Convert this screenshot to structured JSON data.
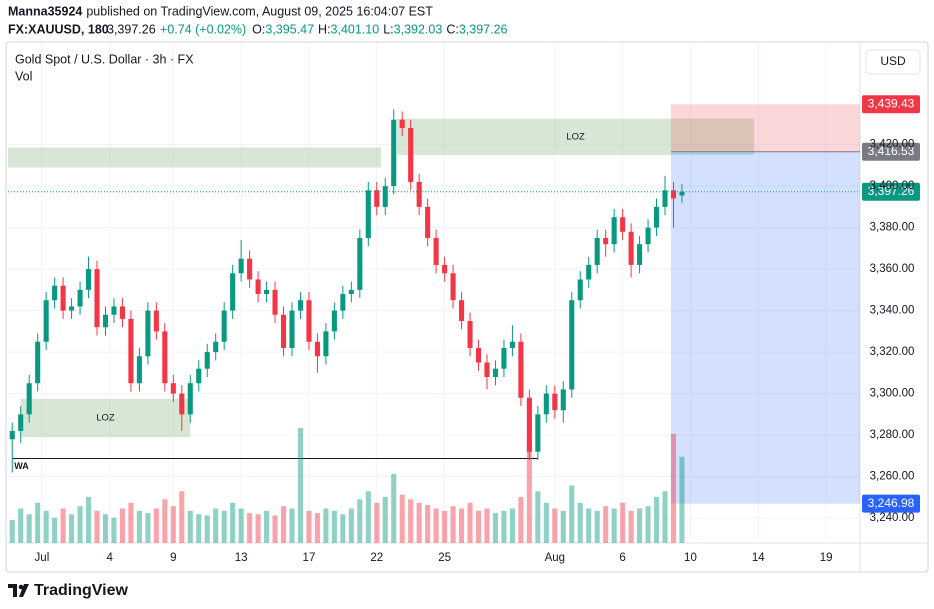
{
  "header": {
    "author": "Manna35924",
    "published": "published on TradingView.com, August 09, 2025 16:04:07 EST",
    "symbol": "FX:XAUUSD, 180",
    "last": "3,397.26",
    "change": "+0.74 (+0.02%)",
    "ohlc": [
      {
        "key": "O:",
        "value": "3,395.47"
      },
      {
        "key": "H:",
        "value": "3,401.10"
      },
      {
        "key": "L:",
        "value": "3,392.03"
      },
      {
        "key": "C:",
        "value": "3,397.26"
      }
    ]
  },
  "chart_data": {
    "type": "candlestick",
    "title": "Gold Spot / U.S. Dollar · 3h · FX",
    "currency": "USD",
    "up_color": "#089981",
    "down_color": "#f23645",
    "grid": true,
    "xlim": [
      -0.5,
      100
    ],
    "xticks": [
      {
        "value": 3.5,
        "label": "Jul"
      },
      {
        "value": 11.5,
        "label": "4"
      },
      {
        "value": 19,
        "label": "9"
      },
      {
        "value": 27,
        "label": "13"
      },
      {
        "value": 35,
        "label": "17"
      },
      {
        "value": 43,
        "label": "22"
      },
      {
        "value": 51,
        "label": "25"
      },
      {
        "value": 64,
        "label": "Aug"
      },
      {
        "value": 72,
        "label": "6"
      },
      {
        "value": 80,
        "label": "10"
      },
      {
        "value": 88,
        "label": "14"
      },
      {
        "value": 96,
        "label": "19"
      }
    ],
    "ylim": [
      3228,
      3468
    ],
    "yticks": [
      {
        "value": 3240,
        "label": "3,240.00"
      },
      {
        "value": 3260,
        "label": "3,260.00"
      },
      {
        "value": 3280,
        "label": "3,280.00"
      },
      {
        "value": 3300,
        "label": "3,300.00"
      },
      {
        "value": 3320,
        "label": "3,320.00"
      },
      {
        "value": 3340,
        "label": "3,340.00"
      },
      {
        "value": 3360,
        "label": "3,360.00"
      },
      {
        "value": 3380,
        "label": "3,380.00"
      },
      {
        "value": 3400,
        "label": "3,400.00"
      },
      {
        "value": 3420,
        "label": "3,420.00"
      }
    ],
    "open": [
      3278,
      3282,
      3290,
      3305,
      3325,
      3345,
      3352,
      3340,
      3342,
      3350,
      3360,
      3332,
      3338,
      3342,
      3336,
      3305,
      3318,
      3340,
      3330,
      3305,
      3300,
      3290,
      3305,
      3312,
      3320,
      3325,
      3340,
      3358,
      3365,
      3355,
      3348,
      3350,
      3338,
      3322,
      3340,
      3345,
      3325,
      3318,
      3330,
      3340,
      3348,
      3350,
      3375,
      3398,
      3390,
      3400,
      3432,
      3428,
      3402,
      3390,
      3375,
      3362,
      3358,
      3345,
      3335,
      3322,
      3315,
      3308,
      3312,
      3322,
      3325,
      3298,
      3272,
      3290,
      3300,
      3292,
      3302,
      3345,
      3355,
      3362,
      3375,
      3372,
      3385,
      3378,
      3362,
      3372,
      3380,
      3390,
      3398,
      3395.47
    ],
    "high": [
      3286,
      3294,
      3309,
      3329,
      3349,
      3356,
      3356,
      3346,
      3354,
      3366,
      3364,
      3342,
      3346,
      3346,
      3340,
      3322,
      3344,
      3344,
      3334,
      3309,
      3304,
      3309,
      3316,
      3324,
      3329,
      3344,
      3362,
      3374,
      3369,
      3359,
      3354,
      3354,
      3342,
      3344,
      3349,
      3349,
      3329,
      3334,
      3344,
      3352,
      3354,
      3379,
      3402,
      3402,
      3404,
      3437,
      3436,
      3432,
      3406,
      3394,
      3379,
      3366,
      3362,
      3349,
      3339,
      3326,
      3319,
      3316,
      3326,
      3333,
      3329,
      3302,
      3294,
      3304,
      3304,
      3306,
      3349,
      3359,
      3366,
      3379,
      3379,
      3389,
      3389,
      3382,
      3376,
      3384,
      3394,
      3405,
      3402,
      3401.1
    ],
    "low": [
      3262,
      3276,
      3286,
      3301,
      3321,
      3341,
      3336,
      3336,
      3338,
      3346,
      3328,
      3328,
      3334,
      3332,
      3301,
      3301,
      3314,
      3326,
      3301,
      3296,
      3282,
      3286,
      3301,
      3308,
      3316,
      3321,
      3336,
      3354,
      3351,
      3344,
      3344,
      3334,
      3318,
      3318,
      3336,
      3321,
      3310,
      3314,
      3326,
      3336,
      3344,
      3346,
      3371,
      3386,
      3386,
      3396,
      3424,
      3398,
      3386,
      3371,
      3358,
      3354,
      3341,
      3331,
      3318,
      3311,
      3302,
      3304,
      3308,
      3318,
      3294,
      3268,
      3268,
      3286,
      3288,
      3286,
      3298,
      3341,
      3351,
      3358,
      3366,
      3368,
      3374,
      3356,
      3358,
      3368,
      3376,
      3386,
      3380,
      3392.03
    ],
    "close": [
      3282,
      3290,
      3305,
      3325,
      3345,
      3352,
      3340,
      3342,
      3350,
      3360,
      3332,
      3338,
      3342,
      3336,
      3305,
      3318,
      3340,
      3330,
      3305,
      3300,
      3290,
      3305,
      3312,
      3320,
      3325,
      3340,
      3358,
      3365,
      3355,
      3348,
      3350,
      3338,
      3322,
      3340,
      3345,
      3325,
      3318,
      3330,
      3340,
      3348,
      3350,
      3375,
      3398,
      3390,
      3400,
      3432,
      3428,
      3402,
      3390,
      3375,
      3362,
      3358,
      3345,
      3335,
      3322,
      3315,
      3308,
      3312,
      3322,
      3325,
      3298,
      3272,
      3290,
      3300,
      3292,
      3302,
      3345,
      3355,
      3362,
      3375,
      3372,
      3385,
      3378,
      3362,
      3372,
      3380,
      3390,
      3398,
      3394,
      3397.26
    ],
    "volume": {
      "name": "Vol",
      "values": [
        20,
        30,
        25,
        35,
        28,
        22,
        30,
        25,
        32,
        40,
        28,
        25,
        22,
        30,
        35,
        28,
        26,
        30,
        38,
        32,
        45,
        28,
        25,
        24,
        30,
        28,
        35,
        30,
        26,
        25,
        28,
        24,
        32,
        30,
        100,
        28,
        26,
        30,
        28,
        25,
        30,
        38,
        45,
        35,
        40,
        60,
        42,
        38,
        35,
        33,
        30,
        28,
        32,
        30,
        35,
        28,
        30,
        26,
        28,
        30,
        40,
        90,
        45,
        35,
        30,
        28,
        50,
        35,
        30,
        28,
        32,
        30,
        35,
        28,
        30,
        32,
        40,
        45,
        95,
        75
      ]
    },
    "zones": [
      {
        "x": [
          -0.5,
          43.5
        ],
        "y": [
          3409,
          3418.6
        ],
        "color": "#a9c8a2"
      },
      {
        "x": [
          45.4,
          87.5
        ],
        "y": [
          3415,
          3432.5
        ],
        "color": "#a9c8a2",
        "label": "LOZ"
      },
      {
        "x": [
          1,
          21
        ],
        "y": [
          3279,
          3297.5
        ],
        "color": "#a9c8a2",
        "label": "LOZ"
      }
    ],
    "level_line": {
      "x": [
        0,
        62
      ],
      "value": 3268.7,
      "label": "WA",
      "color": "#131722"
    },
    "position": {
      "x": [
        77.7,
        100
      ],
      "target": {
        "value": 3439.43,
        "label": "3,439.43",
        "color": "#f23645"
      },
      "entry": {
        "value": 3416.53,
        "label": "3,416.53",
        "color": "#787b86"
      },
      "stop": {
        "value": 3246.98,
        "label": "3,246.98",
        "color": "#2962ff"
      }
    },
    "last_price": {
      "value": 3397.26,
      "label": "3,397.26",
      "color": "#089981"
    }
  },
  "footer": {
    "brand": "TradingView"
  }
}
